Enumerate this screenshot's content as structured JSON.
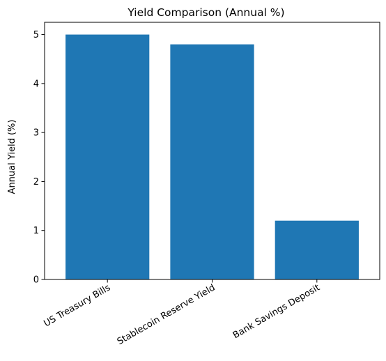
{
  "chart_data": {
    "type": "bar",
    "title": "Yield Comparison (Annual %)",
    "xlabel": "",
    "ylabel": "Annual Yield (%)",
    "categories": [
      "US Treasury Bills",
      "Stablecoin Reserve Yield",
      "Bank Savings Deposit"
    ],
    "values": [
      5.0,
      4.8,
      1.2
    ],
    "ylim": [
      0,
      5.25
    ],
    "yticks": [
      "0",
      "1",
      "2",
      "3",
      "4",
      "5"
    ],
    "grid": false,
    "legend": "none",
    "bar_color": "#1f77b4"
  }
}
